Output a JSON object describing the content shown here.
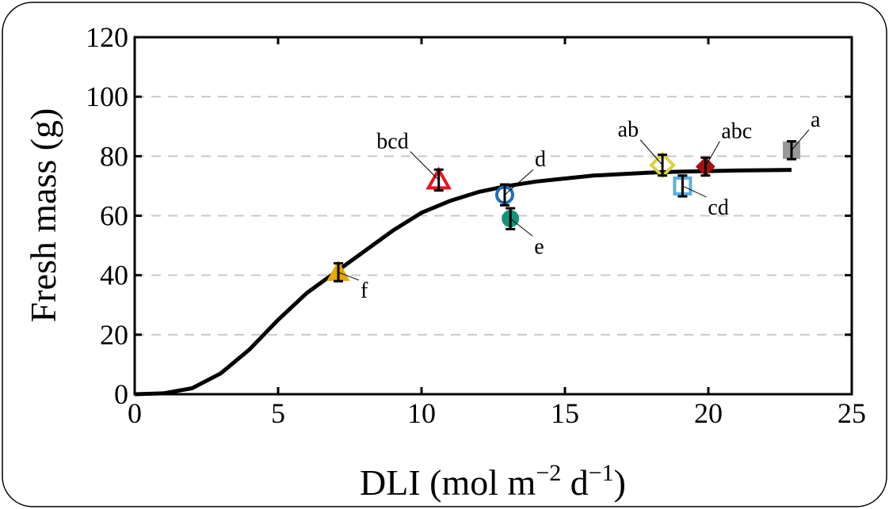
{
  "chart_data": {
    "type": "scatter",
    "title": "",
    "xlabel": {
      "base": "DLI (mol m",
      "exp1": "−2",
      "mid": " d",
      "exp2": "−1",
      "end": ")"
    },
    "ylabel": "Fresh mass (g)",
    "xlim": [
      0,
      25
    ],
    "ylim": [
      0,
      120
    ],
    "xticks": [
      "0",
      "5",
      "10",
      "15",
      "20",
      "25"
    ],
    "yticks": [
      "0",
      "20",
      "40",
      "60",
      "80",
      "100",
      "120"
    ],
    "grid": "horizontal dashed",
    "points": [
      {
        "x": 7.1,
        "y": 41,
        "err": 3,
        "label": "f",
        "marker": "triangle-filled",
        "color": "#E8A800"
      },
      {
        "x": 10.6,
        "y": 72,
        "err": 3.5,
        "label": "bcd",
        "marker": "triangle-open",
        "color": "#E8141B"
      },
      {
        "x": 12.9,
        "y": 67,
        "err": 3.5,
        "label": "d",
        "marker": "circle-open",
        "color": "#1F6FB5"
      },
      {
        "x": 13.1,
        "y": 59,
        "err": 3.5,
        "label": "e",
        "marker": "circle-filled",
        "color": "#13937A"
      },
      {
        "x": 18.4,
        "y": 77,
        "err": 3.5,
        "label": "ab",
        "marker": "diamond-open",
        "color": "#D7D43A"
      },
      {
        "x": 19.1,
        "y": 70,
        "err": 3.5,
        "label": "cd",
        "marker": "square-open",
        "color": "#5AAEE3"
      },
      {
        "x": 19.9,
        "y": 76.5,
        "err": 3,
        "label": "abc",
        "marker": "diamond-filled",
        "color": "#A50F15"
      },
      {
        "x": 22.9,
        "y": 82,
        "err": 3,
        "label": "a",
        "marker": "square-filled",
        "color": "#999999"
      }
    ],
    "fit_curve": {
      "x": [
        0,
        1,
        2,
        3,
        4,
        5,
        6,
        7,
        8,
        9,
        10,
        11,
        12,
        13,
        14,
        15,
        16,
        17,
        18,
        19,
        20,
        21,
        22,
        22.9
      ],
      "y": [
        0,
        0.3,
        2,
        7,
        15,
        25,
        34,
        41,
        48,
        55,
        61,
        65,
        68,
        70,
        71.5,
        72.5,
        73.5,
        74,
        74.5,
        74.8,
        75,
        75.2,
        75.3,
        75.4
      ]
    }
  }
}
